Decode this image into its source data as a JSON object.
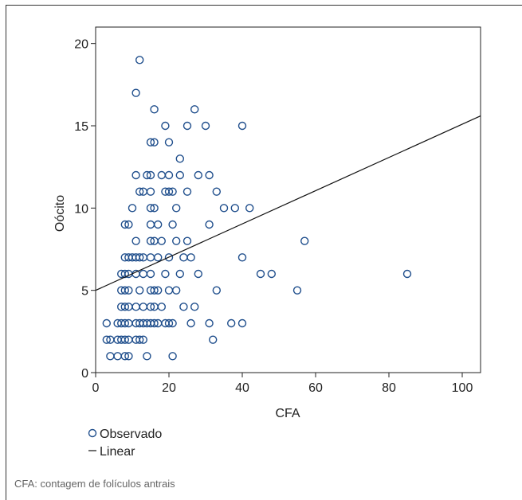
{
  "footnote": "CFA: contagem de folículos antrais",
  "chart_data": {
    "type": "scatter",
    "xlabel": "CFA",
    "ylabel": "Oócito",
    "xlim": [
      0,
      105
    ],
    "ylim": [
      0,
      21
    ],
    "xticks": [
      0,
      20,
      40,
      60,
      80,
      100
    ],
    "yticks": [
      0,
      5,
      10,
      15,
      20
    ],
    "grid": false,
    "legend": {
      "position": "bottom-left",
      "entries": [
        {
          "label": "Observado",
          "marker": "circle"
        },
        {
          "label": "Linear",
          "marker": "line"
        }
      ]
    },
    "series": [
      {
        "name": "Observado",
        "color": "#1f4e8c",
        "points": [
          [
            12,
            19
          ],
          [
            11,
            17
          ],
          [
            16,
            16
          ],
          [
            27,
            16
          ],
          [
            19,
            15
          ],
          [
            25,
            15
          ],
          [
            30,
            15
          ],
          [
            40,
            15
          ],
          [
            15,
            14
          ],
          [
            16,
            14
          ],
          [
            20,
            14
          ],
          [
            23,
            13
          ],
          [
            11,
            12
          ],
          [
            14,
            12
          ],
          [
            15,
            12
          ],
          [
            18,
            12
          ],
          [
            20,
            12
          ],
          [
            23,
            12
          ],
          [
            28,
            12
          ],
          [
            31,
            12
          ],
          [
            12,
            11
          ],
          [
            13,
            11
          ],
          [
            15,
            11
          ],
          [
            19,
            11
          ],
          [
            20,
            11
          ],
          [
            21,
            11
          ],
          [
            25,
            11
          ],
          [
            33,
            11
          ],
          [
            10,
            10
          ],
          [
            15,
            10
          ],
          [
            16,
            10
          ],
          [
            22,
            10
          ],
          [
            35,
            10
          ],
          [
            38,
            10
          ],
          [
            42,
            10
          ],
          [
            8,
            9
          ],
          [
            9,
            9
          ],
          [
            15,
            9
          ],
          [
            17,
            9
          ],
          [
            21,
            9
          ],
          [
            31,
            9
          ],
          [
            11,
            8
          ],
          [
            15,
            8
          ],
          [
            16,
            8
          ],
          [
            18,
            8
          ],
          [
            22,
            8
          ],
          [
            25,
            8
          ],
          [
            57,
            8
          ],
          [
            8,
            7
          ],
          [
            9,
            7
          ],
          [
            10,
            7
          ],
          [
            11,
            7
          ],
          [
            12,
            7
          ],
          [
            13,
            7
          ],
          [
            15,
            7
          ],
          [
            17,
            7
          ],
          [
            20,
            7
          ],
          [
            24,
            7
          ],
          [
            26,
            7
          ],
          [
            40,
            7
          ],
          [
            7,
            6
          ],
          [
            8,
            6
          ],
          [
            9,
            6
          ],
          [
            11,
            6
          ],
          [
            13,
            6
          ],
          [
            15,
            6
          ],
          [
            19,
            6
          ],
          [
            23,
            6
          ],
          [
            28,
            6
          ],
          [
            45,
            6
          ],
          [
            48,
            6
          ],
          [
            85,
            6
          ],
          [
            7,
            5
          ],
          [
            8,
            5
          ],
          [
            9,
            5
          ],
          [
            12,
            5
          ],
          [
            15,
            5
          ],
          [
            16,
            5
          ],
          [
            17,
            5
          ],
          [
            20,
            5
          ],
          [
            22,
            5
          ],
          [
            33,
            5
          ],
          [
            55,
            5
          ],
          [
            7,
            4
          ],
          [
            8,
            4
          ],
          [
            9,
            4
          ],
          [
            11,
            4
          ],
          [
            13,
            4
          ],
          [
            15,
            4
          ],
          [
            16,
            4
          ],
          [
            18,
            4
          ],
          [
            24,
            4
          ],
          [
            27,
            4
          ],
          [
            3,
            3
          ],
          [
            6,
            3
          ],
          [
            7,
            3
          ],
          [
            8,
            3
          ],
          [
            9,
            3
          ],
          [
            11,
            3
          ],
          [
            12,
            3
          ],
          [
            13,
            3
          ],
          [
            14,
            3
          ],
          [
            15,
            3
          ],
          [
            16,
            3
          ],
          [
            17,
            3
          ],
          [
            19,
            3
          ],
          [
            20,
            3
          ],
          [
            21,
            3
          ],
          [
            26,
            3
          ],
          [
            31,
            3
          ],
          [
            37,
            3
          ],
          [
            40,
            3
          ],
          [
            3,
            2
          ],
          [
            4,
            2
          ],
          [
            6,
            2
          ],
          [
            7,
            2
          ],
          [
            8,
            2
          ],
          [
            9,
            2
          ],
          [
            11,
            2
          ],
          [
            12,
            2
          ],
          [
            13,
            2
          ],
          [
            32,
            2
          ],
          [
            4,
            1
          ],
          [
            6,
            1
          ],
          [
            8,
            1
          ],
          [
            9,
            1
          ],
          [
            14,
            1
          ],
          [
            21,
            1
          ]
        ]
      },
      {
        "name": "Linear",
        "type": "line",
        "color": "#111111",
        "x": [
          0,
          105
        ],
        "y": [
          5.0,
          15.6
        ]
      }
    ]
  }
}
